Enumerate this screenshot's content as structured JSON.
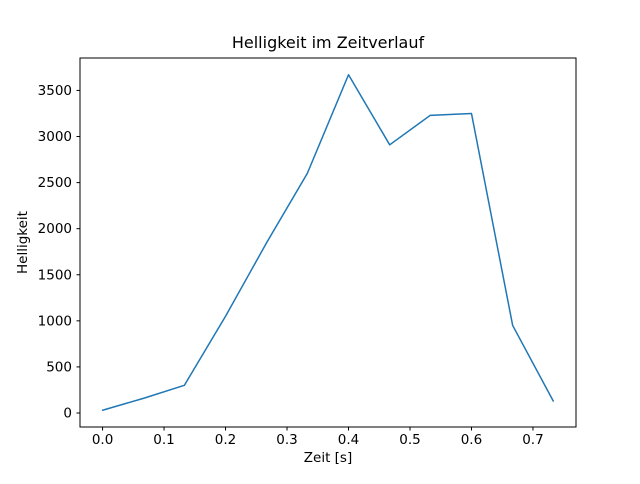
{
  "chart_data": {
    "type": "line",
    "title": "Helligkeit im Zeitverlauf",
    "xlabel": "Zeit [s]",
    "ylabel": "Helligkeit",
    "x": [
      0.0,
      0.067,
      0.133,
      0.2,
      0.267,
      0.333,
      0.4,
      0.467,
      0.533,
      0.6,
      0.667,
      0.733
    ],
    "y": [
      30,
      160,
      300,
      1050,
      1850,
      2600,
      3670,
      2910,
      3230,
      3250,
      950,
      130
    ],
    "series_name": "Helligkeit",
    "line_color": "#1f77b4",
    "line_width": 1.5,
    "xlim": [
      -0.0367,
      0.77
    ],
    "ylim": [
      -152,
      3852
    ],
    "xtick_values": [
      0.0,
      0.1,
      0.2,
      0.3,
      0.4,
      0.5,
      0.6,
      0.7
    ],
    "xtick_labels": [
      "0.0",
      "0.1",
      "0.2",
      "0.3",
      "0.4",
      "0.5",
      "0.6",
      "0.7"
    ],
    "ytick_values": [
      0,
      500,
      1000,
      1500,
      2000,
      2500,
      3000,
      3500
    ],
    "ytick_labels": [
      "0",
      "500",
      "1000",
      "1500",
      "2000",
      "2500",
      "3000",
      "3500"
    ],
    "grid": "off",
    "legend": "none",
    "background_color": "#ffffff",
    "axes_color": "#000000"
  }
}
